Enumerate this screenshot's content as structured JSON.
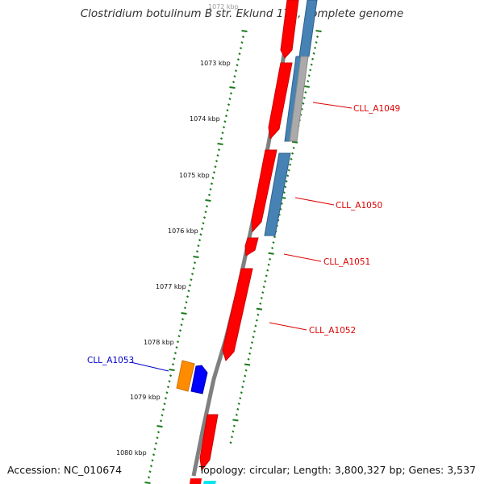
{
  "title": "Clostridium botulinum B str. Eklund 17B, complete genome",
  "accession": "Accession: NC_010674",
  "stats": "Topology: circular; Length: 3,800,327 bp; Genes: 3,537",
  "colors": {
    "backbone": "#808080",
    "tick": "#1a7a1a",
    "gene_forward": "#ff0000",
    "gene_reverse_outer": "#4682b4",
    "gene_grey": "#aaaaaa",
    "label_red": "#dd0000",
    "label_blue": "#0000cc",
    "cll_a1053_orange": "#ff8c00",
    "cll_a1053_blue": "#0000ff",
    "cyan_fragment": "#00e5ee"
  },
  "scale_labels": [
    "1072 kbp",
    "1073 kbp",
    "1074 kbp",
    "1075 kbp",
    "1076 kbp",
    "1077 kbp",
    "1078 kbp",
    "1079 kbp",
    "1080 kbp"
  ],
  "gene_labels": [
    {
      "text": "CLL_A1049",
      "color": "red"
    },
    {
      "text": "CLL_A1050",
      "color": "red"
    },
    {
      "text": "CLL_A1051",
      "color": "red"
    },
    {
      "text": "CLL_A1052",
      "color": "red"
    },
    {
      "text": "CLL_A1053",
      "color": "blue"
    }
  ]
}
